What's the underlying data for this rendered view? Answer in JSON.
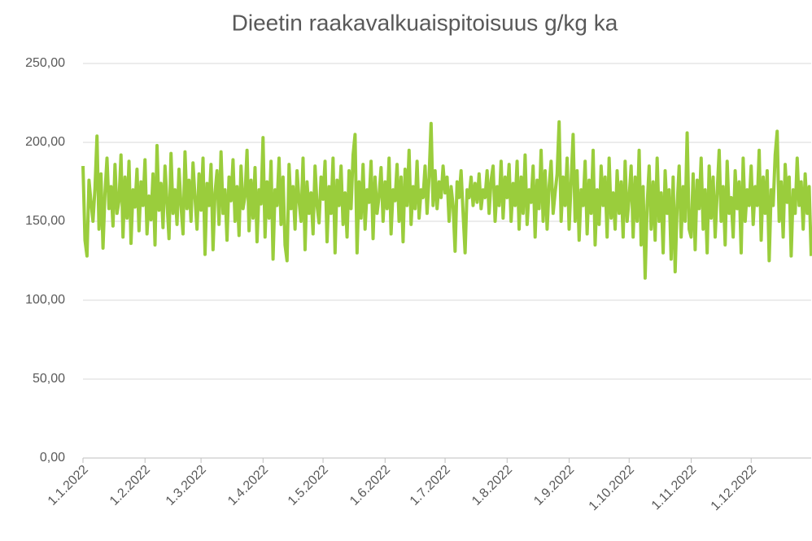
{
  "chart_data": {
    "type": "line",
    "title": "Dieetin raakavalkuaispitoisuus g/kg ka",
    "series": [
      {
        "name": null,
        "color": "#9acd3c",
        "values": [
          185,
          138,
          128,
          176,
          162,
          150,
          171,
          204,
          145,
          180,
          133,
          168,
          190,
          158,
          172,
          147,
          186,
          155,
          163,
          192,
          140,
          178,
          152,
          188,
          136,
          170,
          159,
          183,
          144,
          175,
          160,
          189,
          142,
          166,
          151,
          180,
          135,
          198,
          157,
          174,
          146,
          185,
          162,
          139,
          193,
          155,
          170,
          148,
          183,
          160,
          142,
          194,
          158,
          176,
          150,
          187,
          165,
          145,
          180,
          157,
          190,
          129,
          174,
          160,
          186,
          132,
          168,
          182,
          148,
          194,
          155,
          170,
          138,
          178,
          163,
          189,
          150,
          172,
          141,
          185,
          158,
          166,
          195,
          144,
          176,
          152,
          184,
          137,
          170,
          161,
          203,
          140,
          175,
          152,
          188,
          126,
          170,
          160,
          190,
          148,
          178,
          135,
          125,
          186,
          158,
          172,
          145,
          182,
          163,
          150,
          190,
          132,
          175,
          155,
          168,
          142,
          185,
          160,
          149,
          178,
          164,
          188,
          137,
          172,
          155,
          190,
          130,
          176,
          160,
          185,
          148,
          168,
          140,
          182,
          158,
          192,
          205,
          130,
          175,
          152,
          186,
          145,
          170,
          162,
          188,
          139,
          178,
          155,
          166,
          184,
          150,
          175,
          158,
          190,
          142,
          170,
          163,
          186,
          150,
          178,
          137,
          183,
          160,
          195,
          148,
          172,
          158,
          188,
          152,
          170,
          165,
          185,
          155,
          178,
          212,
          160,
          182,
          158,
          175,
          165,
          185,
          168,
          178,
          150,
          172,
          160,
          131,
          175,
          165,
          182,
          155,
          130,
          170,
          165,
          178,
          160,
          174,
          162,
          180,
          158,
          170,
          165,
          182,
          155,
          176,
          185,
          150,
          172,
          160,
          188,
          152,
          178,
          165,
          186,
          150,
          174,
          160,
          188,
          145,
          178,
          155,
          192,
          148,
          170,
          162,
          185,
          140,
          176,
          158,
          195,
          150,
          182,
          145,
          172,
          188,
          155,
          168,
          180,
          213,
          150,
          178,
          160,
          190,
          145,
          175,
          205,
          150,
          182,
          138,
          170,
          160,
          188,
          142,
          176,
          155,
          195,
          135,
          170,
          148,
          185,
          160,
          178,
          140,
          190,
          152,
          168,
          145,
          182,
          155,
          175,
          140,
          188,
          150,
          165,
          185,
          140,
          178,
          150,
          195,
          135,
          172,
          114,
          160,
          185,
          145,
          175,
          138,
          190,
          150,
          168,
          130,
          182,
          155,
          170,
          126,
          178,
          118,
          160,
          185,
          140,
          172,
          150,
          206,
          145,
          140,
          180,
          132,
          176,
          158,
          190,
          145,
          170,
          130,
          185,
          152,
          178,
          140,
          168,
          195,
          150,
          172,
          135,
          188,
          155,
          165,
          140,
          182,
          158,
          175,
          130,
          190,
          150,
          170,
          160,
          185,
          148,
          172,
          160,
          195,
          138,
          178,
          155,
          182,
          125,
          170,
          160,
          192,
          207,
          150,
          175,
          140,
          186,
          162,
          178,
          128,
          170,
          155,
          190,
          160,
          175,
          145,
          180,
          155,
          172,
          128
        ]
      }
    ],
    "x": [
      "1.1.2022",
      "2.1.2022",
      "3.1.2022",
      "4.1.2022",
      "5.1.2022",
      "6.1.2022",
      "7.1.2022",
      "8.1.2022",
      "9.1.2022",
      "10.1.2022",
      "11.1.2022",
      "12.1.2022",
      "13.1.2022",
      "14.1.2022",
      "15.1.2022",
      "16.1.2022",
      "17.1.2022",
      "18.1.2022",
      "19.1.2022",
      "20.1.2022",
      "21.1.2022",
      "22.1.2022",
      "23.1.2022",
      "24.1.2022",
      "25.1.2022",
      "26.1.2022",
      "27.1.2022",
      "28.1.2022",
      "29.1.2022",
      "30.1.2022",
      "31.1.2022",
      "1.2.2022",
      "2.2.2022",
      "3.2.2022",
      "4.2.2022",
      "5.2.2022",
      "6.2.2022",
      "7.2.2022",
      "8.2.2022",
      "9.2.2022",
      "10.2.2022",
      "11.2.2022",
      "12.2.2022",
      "13.2.2022",
      "14.2.2022",
      "15.2.2022",
      "16.2.2022",
      "17.2.2022",
      "18.2.2022",
      "19.2.2022",
      "20.2.2022",
      "21.2.2022",
      "22.2.2022",
      "23.2.2022",
      "24.2.2022",
      "25.2.2022",
      "26.2.2022",
      "27.2.2022",
      "28.2.2022",
      "1.3.2022",
      "2.3.2022",
      "3.3.2022",
      "4.3.2022",
      "5.3.2022",
      "6.3.2022",
      "7.3.2022",
      "8.3.2022",
      "9.3.2022",
      "10.3.2022",
      "11.3.2022",
      "12.3.2022",
      "13.3.2022",
      "14.3.2022",
      "15.3.2022",
      "16.3.2022",
      "17.3.2022",
      "18.3.2022",
      "19.3.2022",
      "20.3.2022",
      "21.3.2022",
      "22.3.2022",
      "23.3.2022",
      "24.3.2022",
      "25.3.2022",
      "26.3.2022",
      "27.3.2022",
      "28.3.2022",
      "29.3.2022",
      "30.3.2022",
      "31.3.2022",
      "1.4.2022",
      "2.4.2022",
      "3.4.2022",
      "4.4.2022",
      "5.4.2022",
      "6.4.2022",
      "7.4.2022",
      "8.4.2022",
      "9.4.2022",
      "10.4.2022",
      "11.4.2022",
      "12.4.2022",
      "13.4.2022",
      "14.4.2022",
      "15.4.2022",
      "16.4.2022",
      "17.4.2022",
      "18.4.2022",
      "19.4.2022",
      "20.4.2022",
      "21.4.2022",
      "22.4.2022",
      "23.4.2022",
      "24.4.2022",
      "25.4.2022",
      "26.4.2022",
      "27.4.2022",
      "28.4.2022",
      "29.4.2022",
      "30.4.2022",
      "1.5.2022",
      "2.5.2022",
      "3.5.2022",
      "4.5.2022",
      "5.5.2022",
      "6.5.2022",
      "7.5.2022",
      "8.5.2022",
      "9.5.2022",
      "10.5.2022",
      "11.5.2022",
      "12.5.2022",
      "13.5.2022",
      "14.5.2022",
      "15.5.2022",
      "16.5.2022",
      "17.5.2022",
      "18.5.2022",
      "19.5.2022",
      "20.5.2022",
      "21.5.2022",
      "22.5.2022",
      "23.5.2022",
      "24.5.2022",
      "25.5.2022",
      "26.5.2022",
      "27.5.2022",
      "28.5.2022",
      "29.5.2022",
      "30.5.2022",
      "31.5.2022",
      "1.6.2022",
      "2.6.2022",
      "3.6.2022",
      "4.6.2022",
      "5.6.2022",
      "6.6.2022",
      "7.6.2022",
      "8.6.2022",
      "9.6.2022",
      "10.6.2022",
      "11.6.2022",
      "12.6.2022",
      "13.6.2022",
      "14.6.2022",
      "15.6.2022",
      "16.6.2022",
      "17.6.2022",
      "18.6.2022",
      "19.6.2022",
      "20.6.2022",
      "21.6.2022",
      "22.6.2022",
      "23.6.2022",
      "24.6.2022",
      "25.6.2022",
      "26.6.2022",
      "27.6.2022",
      "28.6.2022",
      "29.6.2022",
      "30.6.2022",
      "1.7.2022",
      "2.7.2022",
      "3.7.2022",
      "4.7.2022",
      "5.7.2022",
      "6.7.2022",
      "7.7.2022",
      "8.7.2022",
      "9.7.2022",
      "10.7.2022",
      "11.7.2022",
      "12.7.2022",
      "13.7.2022",
      "14.7.2022",
      "15.7.2022",
      "16.7.2022",
      "17.7.2022",
      "18.7.2022",
      "19.7.2022",
      "20.7.2022",
      "21.7.2022",
      "22.7.2022",
      "23.7.2022",
      "24.7.2022",
      "25.7.2022",
      "26.7.2022",
      "27.7.2022",
      "28.7.2022",
      "29.7.2022",
      "30.7.2022",
      "31.7.2022",
      "1.8.2022",
      "2.8.2022",
      "3.8.2022",
      "4.8.2022",
      "5.8.2022",
      "6.8.2022",
      "7.8.2022",
      "8.8.2022",
      "9.8.2022",
      "10.8.2022",
      "11.8.2022",
      "12.8.2022",
      "13.8.2022",
      "14.8.2022",
      "15.8.2022",
      "16.8.2022",
      "17.8.2022",
      "18.8.2022",
      "19.8.2022",
      "20.8.2022",
      "21.8.2022",
      "22.8.2022",
      "23.8.2022",
      "24.8.2022",
      "25.8.2022",
      "26.8.2022",
      "27.8.2022",
      "28.8.2022",
      "29.8.2022",
      "30.8.2022",
      "31.8.2022",
      "1.9.2022",
      "2.9.2022",
      "3.9.2022",
      "4.9.2022",
      "5.9.2022",
      "6.9.2022",
      "7.9.2022",
      "8.9.2022",
      "9.9.2022",
      "10.9.2022",
      "11.9.2022",
      "12.9.2022",
      "13.9.2022",
      "14.9.2022",
      "15.9.2022",
      "16.9.2022",
      "17.9.2022",
      "18.9.2022",
      "19.9.2022",
      "20.9.2022",
      "21.9.2022",
      "22.9.2022",
      "23.9.2022",
      "24.9.2022",
      "25.9.2022",
      "26.9.2022",
      "27.9.2022",
      "28.9.2022",
      "29.9.2022",
      "30.9.2022",
      "1.10.2022",
      "2.10.2022",
      "3.10.2022",
      "4.10.2022",
      "5.10.2022",
      "6.10.2022",
      "7.10.2022",
      "8.10.2022",
      "9.10.2022",
      "10.10.2022",
      "11.10.2022",
      "12.10.2022",
      "13.10.2022",
      "14.10.2022",
      "15.10.2022",
      "16.10.2022",
      "17.10.2022",
      "18.10.2022",
      "19.10.2022",
      "20.10.2022",
      "21.10.2022",
      "22.10.2022",
      "23.10.2022",
      "24.10.2022",
      "25.10.2022",
      "26.10.2022",
      "27.10.2022",
      "28.10.2022",
      "29.10.2022",
      "30.10.2022",
      "31.10.2022",
      "1.11.2022",
      "2.11.2022",
      "3.11.2022",
      "4.11.2022",
      "5.11.2022",
      "6.11.2022",
      "7.11.2022",
      "8.11.2022",
      "9.11.2022",
      "10.11.2022",
      "11.11.2022",
      "12.11.2022",
      "13.11.2022",
      "14.11.2022",
      "15.11.2022",
      "16.11.2022",
      "17.11.2022",
      "18.11.2022",
      "19.11.2022",
      "20.11.2022",
      "21.11.2022",
      "22.11.2022",
      "23.11.2022",
      "24.11.2022",
      "25.11.2022",
      "26.11.2022",
      "27.11.2022",
      "28.11.2022",
      "29.11.2022",
      "30.11.2022",
      "1.12.2022",
      "2.12.2022",
      "3.12.2022",
      "4.12.2022",
      "5.12.2022",
      "6.12.2022",
      "7.12.2022",
      "8.12.2022",
      "9.12.2022",
      "10.12.2022",
      "11.12.2022",
      "12.12.2022",
      "13.12.2022",
      "14.12.2022",
      "15.12.2022",
      "16.12.2022",
      "17.12.2022",
      "18.12.2022",
      "19.12.2022",
      "20.12.2022",
      "21.12.2022",
      "22.12.2022",
      "23.12.2022",
      "24.12.2022",
      "25.12.2022",
      "26.12.2022",
      "27.12.2022",
      "28.12.2022",
      "29.12.2022",
      "30.12.2022",
      "31.12.2022"
    ],
    "xlim": [
      "1.1.2022",
      "31.12.2022"
    ],
    "xticks": [
      "1.1.2022",
      "1.2.2022",
      "1.3.2022",
      "1.4.2022",
      "1.5.2022",
      "1.6.2022",
      "1.7.2022",
      "1.8.2022",
      "1.9.2022",
      "1.10.2022",
      "1.11.2022",
      "1.12.2022"
    ],
    "ylim": [
      0,
      250
    ],
    "yticks": [
      {
        "value": 0,
        "label": "0,00"
      },
      {
        "value": 50,
        "label": "50,00"
      },
      {
        "value": 100,
        "label": "100,00"
      },
      {
        "value": 150,
        "label": "150,00"
      },
      {
        "value": 200,
        "label": "200,00"
      },
      {
        "value": 250,
        "label": "250,00"
      }
    ],
    "grid": true
  }
}
